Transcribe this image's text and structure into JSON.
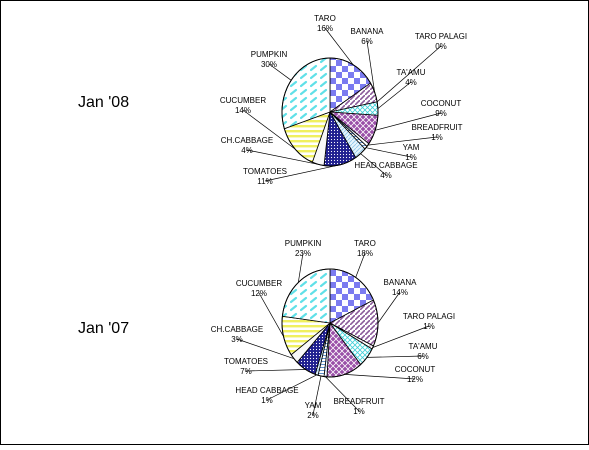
{
  "chart_data": [
    {
      "type": "pie",
      "title": "Jan '08",
      "categories": [
        "TARO",
        "BANANA",
        "TARO PALAGI",
        "TA'AMU",
        "COCONUT",
        "BREADFRUIT",
        "YAM",
        "HEAD CABBAGE",
        "TOMATOES",
        "CH.CABBAGE",
        "CUCUMBER",
        "PUMPKIN"
      ],
      "values": [
        16,
        6,
        0,
        4,
        9,
        1,
        1,
        4,
        11,
        4,
        14,
        30
      ],
      "labels": [
        "16%",
        "6%",
        "0%",
        "4%",
        "9%",
        "1%",
        "1%",
        "4%",
        "11%",
        "4%",
        "14%",
        "30%"
      ],
      "start_angle_deg": 0,
      "direction": "clockwise",
      "slice_colors": [
        "#7b7bf0",
        "#8a5a9a",
        "#c8a0c8",
        "#40d0d8",
        "#9a50a8",
        "#b0c8e8",
        "#6090c8",
        "#c8e8f8",
        "#202090",
        "#f8f8f8",
        "#f0f060",
        "#60e0e8"
      ],
      "slice_patterns": [
        "checker",
        "diag-left",
        "dots",
        "cross",
        "diamond",
        "diag-right",
        "horiz-thin",
        "hatch",
        "dots-dense",
        "solid",
        "horiz",
        "dash"
      ]
    },
    {
      "type": "pie",
      "title": "Jan '07",
      "categories": [
        "TARO",
        "BANANA",
        "TARO PALAGI",
        "TA'AMU",
        "COCONUT",
        "BREADFRUIT",
        "YAM",
        "HEAD CABBAGE",
        "TOMATOES",
        "CH.CABBAGE",
        "CUCUMBER",
        "PUMPKIN"
      ],
      "values": [
        18,
        14,
        1,
        6,
        12,
        1,
        2,
        1,
        7,
        3,
        12,
        23
      ],
      "labels": [
        "18%",
        "14%",
        "1%",
        "6%",
        "12%",
        "1%",
        "2%",
        "1%",
        "7%",
        "3%",
        "12%",
        "23%"
      ],
      "start_angle_deg": 0,
      "direction": "clockwise",
      "slice_colors": [
        "#7b7bf0",
        "#8a5a9a",
        "#c8a0c8",
        "#40d0d8",
        "#9a50a8",
        "#b0c8e8",
        "#6090c8",
        "#c8e8f8",
        "#202090",
        "#f8f8f8",
        "#f0f060",
        "#60e0e8"
      ],
      "slice_patterns": [
        "checker",
        "diag-left",
        "dots",
        "cross",
        "diamond",
        "diag-right",
        "horiz-thin",
        "hatch",
        "dots-dense",
        "solid",
        "horiz",
        "dash"
      ]
    }
  ]
}
